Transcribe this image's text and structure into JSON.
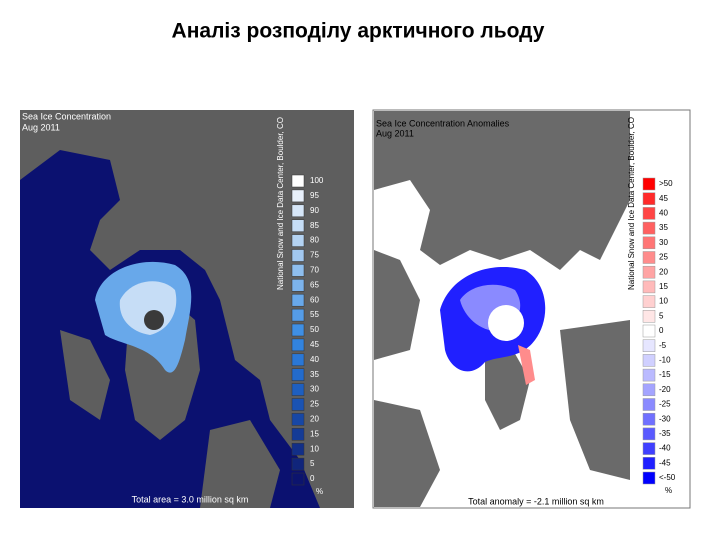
{
  "title": "Аналіз розподілу арктичного льоду",
  "maps": [
    {
      "title": "Sea Ice Concentration",
      "date": "Aug 2011",
      "credit": "National Snow and Ice Data Center, Boulder, CO",
      "legend": [
        {
          "label": "100",
          "color": "#ffffff"
        },
        {
          "label": "95",
          "color": "#e8f0fb"
        },
        {
          "label": "90",
          "color": "#d6e6f8"
        },
        {
          "label": "85",
          "color": "#c6ddf6"
        },
        {
          "label": "80",
          "color": "#b4d3f3"
        },
        {
          "label": "75",
          "color": "#a2c8f0"
        },
        {
          "label": "70",
          "color": "#8ebeee"
        },
        {
          "label": "65",
          "color": "#7cb3ec"
        },
        {
          "label": "60",
          "color": "#68a8ea"
        },
        {
          "label": "55",
          "color": "#559ce7"
        },
        {
          "label": "50",
          "color": "#3f8fe4"
        },
        {
          "label": "45",
          "color": "#3283de"
        },
        {
          "label": "40",
          "color": "#2a77d6"
        },
        {
          "label": "35",
          "color": "#236bcc"
        },
        {
          "label": "30",
          "color": "#1e5fc0"
        },
        {
          "label": "25",
          "color": "#1a53b3"
        },
        {
          "label": "20",
          "color": "#1747a5"
        },
        {
          "label": "15",
          "color": "#143b96"
        },
        {
          "label": "10",
          "color": "#122f88"
        },
        {
          "label": "5",
          "color": "#10257b"
        },
        {
          "label": "0",
          "color": "#0c146e"
        }
      ],
      "unit": "%",
      "total": "Total area =  3.0 million sq km"
    },
    {
      "title": "Sea Ice Concentration Anomalies",
      "date": "Aug 2011",
      "credit": "National Snow and Ice Data Center, Boulder, CO",
      "legend": [
        {
          "label": ">50",
          "color": "#ff0000"
        },
        {
          "label": "45",
          "color": "#ff2a2a"
        },
        {
          "label": "40",
          "color": "#ff4545"
        },
        {
          "label": "35",
          "color": "#ff6060"
        },
        {
          "label": "30",
          "color": "#ff7575"
        },
        {
          "label": "25",
          "color": "#ff8c8c"
        },
        {
          "label": "20",
          "color": "#ffa4a4"
        },
        {
          "label": "15",
          "color": "#ffbaba"
        },
        {
          "label": "10",
          "color": "#ffd0d0"
        },
        {
          "label": "5",
          "color": "#ffe6e6"
        },
        {
          "label": "0",
          "color": "#ffffff"
        },
        {
          "label": "-5",
          "color": "#e6e6ff"
        },
        {
          "label": "-10",
          "color": "#d0d0ff"
        },
        {
          "label": "-15",
          "color": "#babaff"
        },
        {
          "label": "-20",
          "color": "#a4a4ff"
        },
        {
          "label": "-25",
          "color": "#8a8aff"
        },
        {
          "label": "-30",
          "color": "#7070ff"
        },
        {
          "label": "-35",
          "color": "#5a5aff"
        },
        {
          "label": "-40",
          "color": "#4040ff"
        },
        {
          "label": "-45",
          "color": "#2020ff"
        },
        {
          "label": "<-50",
          "color": "#0000ff"
        }
      ],
      "unit": "%",
      "total": "Total anomaly = -2.1 million sq km"
    }
  ]
}
